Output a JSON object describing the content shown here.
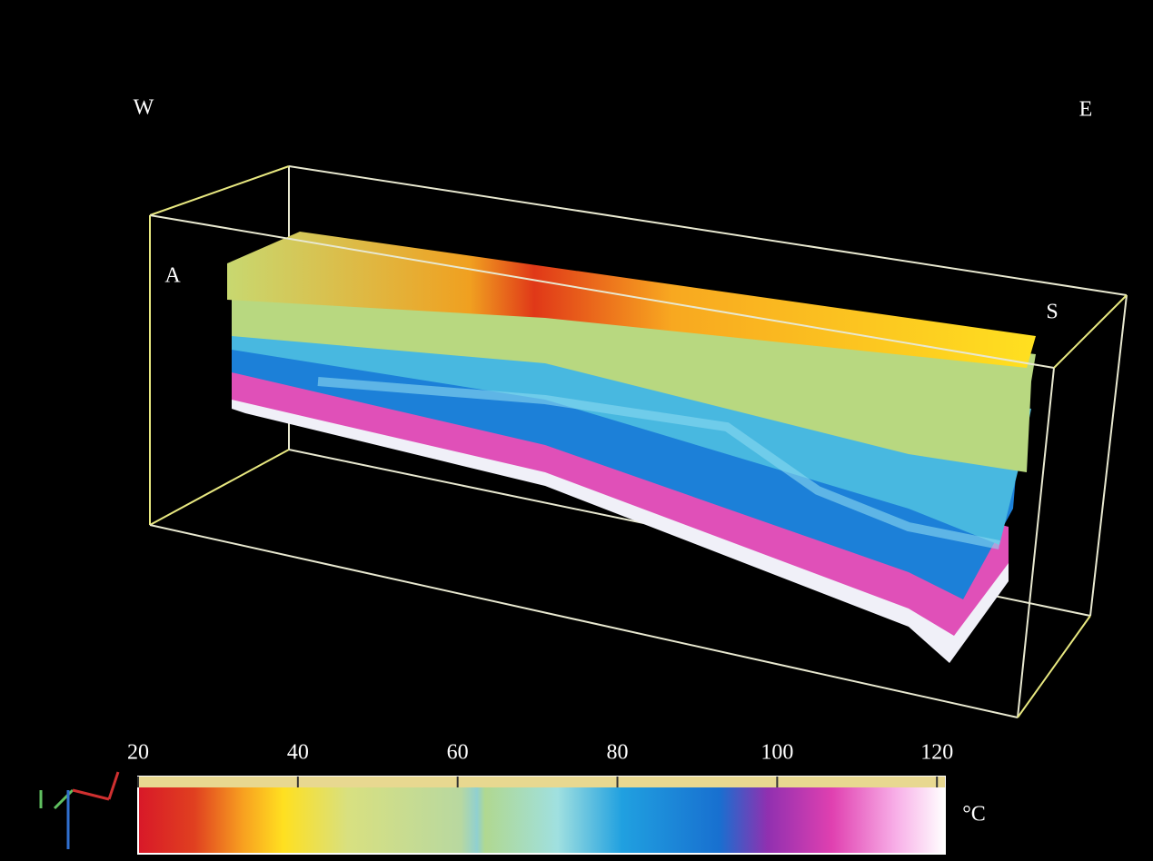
{
  "labels": {
    "west": "W",
    "east": "E",
    "a": "A",
    "s": "S"
  },
  "colorbar": {
    "ticks": [
      20,
      40,
      60,
      80,
      100,
      120
    ],
    "lim": [
      20,
      121
    ],
    "unit": "°C"
  }
}
